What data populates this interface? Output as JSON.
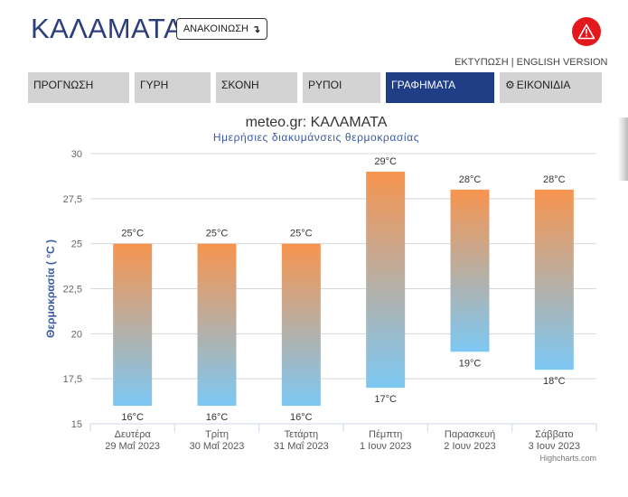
{
  "header": {
    "title": "ΚΑΛΑΜΑΤΑ",
    "announce_label": "ΑΝΑΚΟΙΝΩΣΗ",
    "announce_arrow": "↴",
    "print_label": "ΕΚΤΥΠΩΣΗ",
    "separator": " | ",
    "english_label": "ENGLISH VERSION",
    "warning_icon": "warning-triangle-icon",
    "warning_color": "#e3181d"
  },
  "tabs": [
    {
      "label": "ΠΡΟΓΝΩΣΗ",
      "active": false
    },
    {
      "label": "ΓΥΡΗ",
      "active": false
    },
    {
      "label": "ΣΚΟΝΗ",
      "active": false
    },
    {
      "label": "ΡΥΠΟΙ",
      "active": false
    },
    {
      "label": "ΓΡΑΦΗΜΑΤΑ",
      "active": true
    },
    {
      "label": "ΕΙΚΟΝΙΔΙΑ",
      "active": false,
      "icon": "gear-icon"
    }
  ],
  "chart_data": {
    "type": "bar",
    "subtype": "columnrange",
    "title": "meteo.gr: ΚΑΛΑΜΑΤΑ",
    "subtitle": "Ημερήσιες διακυμάνσεις θερμοκρασίας",
    "ylabel": "Θερμοκρασία ( °C )",
    "xlabel": "",
    "ylim": [
      15,
      30
    ],
    "yticks": [
      "15",
      "17,5",
      "20",
      "22,5",
      "25",
      "27,5",
      "30"
    ],
    "ytick_values": [
      15,
      17.5,
      20,
      22.5,
      25,
      27.5,
      30
    ],
    "categories": [
      [
        "Δευτέρα",
        "29 Μαΐ 2023"
      ],
      [
        "Τρίτη",
        "30 Μαΐ 2023"
      ],
      [
        "Τετάρτη",
        "31 Μαΐ 2023"
      ],
      [
        "Πέμπτη",
        "1 Ιουν 2023"
      ],
      [
        "Παρασκευή",
        "2 Ιουν 2023"
      ],
      [
        "Σάββατο",
        "3 Ιουν 2023"
      ]
    ],
    "series": [
      {
        "low": [
          16,
          16,
          16,
          17,
          19,
          18
        ],
        "high": [
          25,
          25,
          25,
          29,
          28,
          28
        ]
      }
    ],
    "unit": "°C",
    "grid": true,
    "legend": "none",
    "credits": "Highcharts.com",
    "colors": {
      "top": "#f7944f",
      "bottom": "#7cc8f4",
      "title": "#333333",
      "subtitle": "#3a5aa0",
      "ylabel": "#3a5aa0"
    }
  }
}
